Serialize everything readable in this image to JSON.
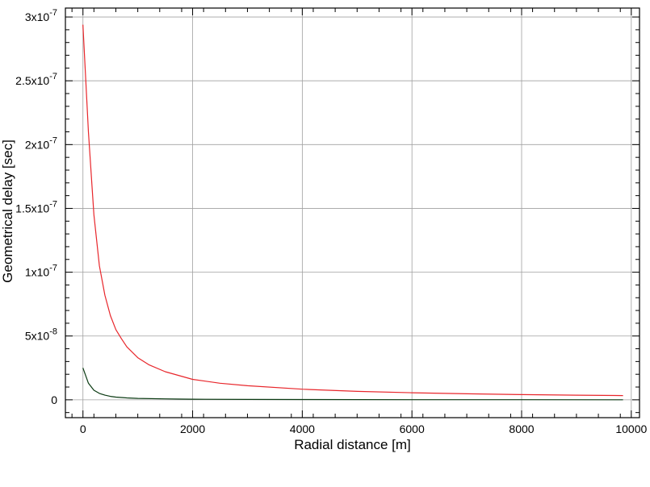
{
  "chart_data": {
    "type": "line",
    "title": "",
    "xlabel": "Radial distance [m]",
    "ylabel": "Geometrical delay [sec]",
    "xlim": [
      -320,
      10150
    ],
    "ylim": [
      -1.4e-08,
      3.07e-07
    ],
    "grid": true,
    "x_ticks": [
      {
        "value": 0,
        "label": "0"
      },
      {
        "value": 2000,
        "label": "2000"
      },
      {
        "value": 4000,
        "label": "4000"
      },
      {
        "value": 6000,
        "label": "6000"
      },
      {
        "value": 8000,
        "label": "8000"
      },
      {
        "value": 10000,
        "label": "10000"
      }
    ],
    "y_ticks": [
      {
        "value": 0,
        "mantissa": "0",
        "exponent": ""
      },
      {
        "value": 5e-08,
        "mantissa": "5x10",
        "exponent": "-8"
      },
      {
        "value": 1e-07,
        "mantissa": "1x10",
        "exponent": "-7"
      },
      {
        "value": 1.5e-07,
        "mantissa": "1.5x10",
        "exponent": "-7"
      },
      {
        "value": 2e-07,
        "mantissa": "2x10",
        "exponent": "-7"
      },
      {
        "value": 2.5e-07,
        "mantissa": "2.5x10",
        "exponent": "-7"
      },
      {
        "value": 3e-07,
        "mantissa": "3x10",
        "exponent": "-7"
      }
    ],
    "series": [
      {
        "color": "#e8262b",
        "x": [
          0,
          100,
          200,
          300,
          400,
          500,
          600,
          700,
          800,
          1000,
          1200,
          1500,
          2000,
          2500,
          3000,
          4000,
          5000,
          6000,
          7000,
          8000,
          9000,
          9850
        ],
        "y": [
          2.94e-07,
          2.1e-07,
          1.45e-07,
          1.05e-07,
          8.2e-08,
          6.6e-08,
          5.5e-08,
          4.8e-08,
          4.15e-08,
          3.3e-08,
          2.75e-08,
          2.2e-08,
          1.6e-08,
          1.3e-08,
          1.1e-08,
          8.3e-09,
          6.6e-09,
          5.5e-09,
          4.7e-09,
          4.1e-09,
          3.6e-09,
          3.3e-09
        ]
      },
      {
        "color": "#0a3a12",
        "x": [
          0,
          100,
          200,
          300,
          400,
          500,
          600,
          800,
          1000,
          1500,
          2000,
          3000,
          4000,
          6000,
          8000,
          9850
        ],
        "y": [
          2.5e-08,
          1.3e-08,
          7.5e-09,
          5e-09,
          3.6e-09,
          2.7e-09,
          2.1e-09,
          1.5e-09,
          1.1e-09,
          7e-10,
          5e-10,
          3e-10,
          2e-10,
          1e-10,
          7e-11,
          5e-11
        ]
      }
    ]
  }
}
